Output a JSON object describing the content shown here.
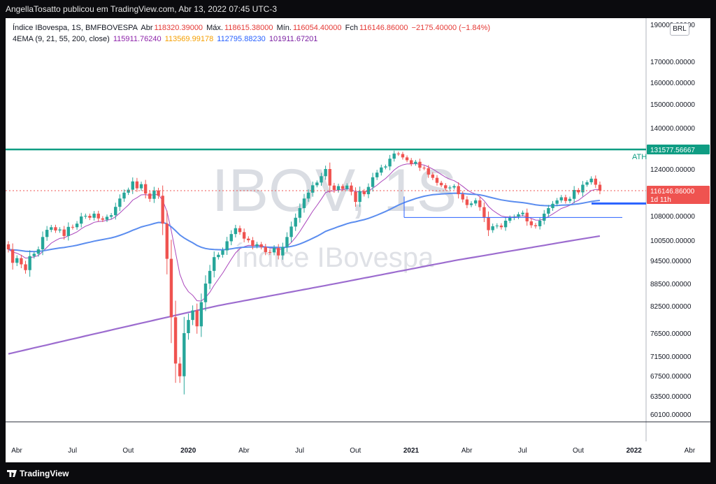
{
  "header": {
    "publisher_line": "AngellaTosatto publicou em TradingView.com, Abr 13, 2022 07:45 UTC-3"
  },
  "footer": {
    "brand": "TradingView"
  },
  "legend": {
    "symbol": "Índice IBovespa, 1S, BMFBOVESPA",
    "open_label": "Abr",
    "open_value": "118320.39000",
    "high_label": "Máx.",
    "high_value": "118615.38000",
    "low_label": "Mín.",
    "low_value": "116054.40000",
    "close_label": "Fch",
    "close_value": "116146.86000",
    "change": "−2175.40000 (−1.84%)",
    "indicator": "4EMA (9, 21, 55, 200, close)",
    "ema_values": [
      "115911.76240",
      "113569.99178",
      "112795.88230",
      "101911.67201"
    ]
  },
  "currency_button": "BRL",
  "watermark": {
    "ticker": "IBOV, 1S",
    "name": "Índice IBovespa"
  },
  "colors": {
    "up": "#26a69a",
    "down": "#ef5350",
    "ema9": "#ab47bc",
    "ema21": "#f59f00",
    "ema55": "#5b8def",
    "ema200": "#9c6ccf",
    "ath_line": "#0f9d83",
    "horizontal_line": "#2962ff",
    "last_price": "#ef5350"
  },
  "chart_data": {
    "type": "candlestick",
    "timeframe": "1S",
    "y_ticks": [
      190000,
      170000,
      160000,
      150000,
      140000,
      124000,
      116000,
      108000,
      100500,
      94500,
      88500,
      82500,
      76500,
      71500,
      67500,
      63500,
      60100
    ],
    "y_tick_labels": [
      "190000.00000",
      "170000.00000",
      "160000.00000",
      "150000.00000",
      "140000.00000",
      "124000.00000",
      "116000.00000",
      "108000.00000",
      "100500.00000",
      "94500.00000",
      "88500.00000",
      "82500.00000",
      "76500.00000",
      "71500.00000",
      "67500.00000",
      "63500.00000",
      "60100.00000"
    ],
    "x_ticks": [
      "Abr",
      "Jul",
      "Out",
      "2020",
      "Abr",
      "Jul",
      "Out",
      "2021",
      "Abr",
      "Jul",
      "Out",
      "2022",
      "Abr"
    ],
    "x_tick_positions": [
      0,
      13,
      26,
      40,
      53,
      66,
      79,
      92,
      105,
      118,
      131,
      144,
      157
    ],
    "axis_badges": [
      {
        "label": "131577.56667",
        "value": 131577.56667,
        "color": "#0f9d83"
      },
      {
        "label": "116146.86000",
        "sub": "1d 11h",
        "value": 116146.86,
        "color": "#ef5350"
      }
    ],
    "ath": {
      "label": "ATH",
      "value": 131577.56667
    },
    "support_lines": [
      107500,
      112000
    ],
    "last_price": 116146.86,
    "weekly_closes": [
      97800,
      93900,
      95200,
      93500,
      92000,
      95800,
      96500,
      97800,
      101500,
      103700,
      104500,
      103500,
      103800,
      101800,
      104600,
      104500,
      105600,
      107800,
      108000,
      107400,
      108700,
      107200,
      106800,
      107700,
      108200,
      110900,
      113600,
      115500,
      116500,
      119500,
      117000,
      118500,
      115200,
      113500,
      116200,
      114500,
      105600,
      95000,
      80000,
      70000,
      67400,
      76500,
      79400,
      81500,
      78000,
      83500,
      88500,
      91800,
      95500,
      96200,
      97500,
      100200,
      102400,
      104200,
      103000,
      101000,
      100500,
      98800,
      99300,
      98500,
      97000,
      96900,
      98200,
      96000,
      98500,
      101500,
      104700,
      107400,
      110500,
      113600,
      115500,
      118100,
      119100,
      121400,
      124000,
      118000,
      116400,
      117800,
      116800,
      118000,
      115800,
      112500,
      116000,
      115000,
      117500,
      121000,
      122700,
      124600,
      125000,
      128000,
      130000,
      129800,
      128500,
      127400,
      126000,
      126800,
      124500,
      124300,
      122000,
      120800,
      119000,
      118100,
      117000,
      117300,
      117800,
      115000,
      113300,
      111500,
      112000,
      113000,
      110800,
      107600,
      103600,
      104800,
      105000,
      104500,
      106500,
      107400,
      107700,
      108500,
      109000,
      106300,
      105100,
      104800,
      106500,
      108700,
      110500,
      111900,
      113000,
      114000,
      112800,
      113500,
      116400,
      115600,
      118300,
      119200,
      120500,
      118300,
      116146.86
    ],
    "ema_series": [
      {
        "period": 9,
        "value": 115911.7624
      },
      {
        "period": 21,
        "value": 113569.99178
      },
      {
        "period": 55,
        "value": 112795.8823
      },
      {
        "period": 200,
        "value": 101911.67201
      }
    ]
  }
}
